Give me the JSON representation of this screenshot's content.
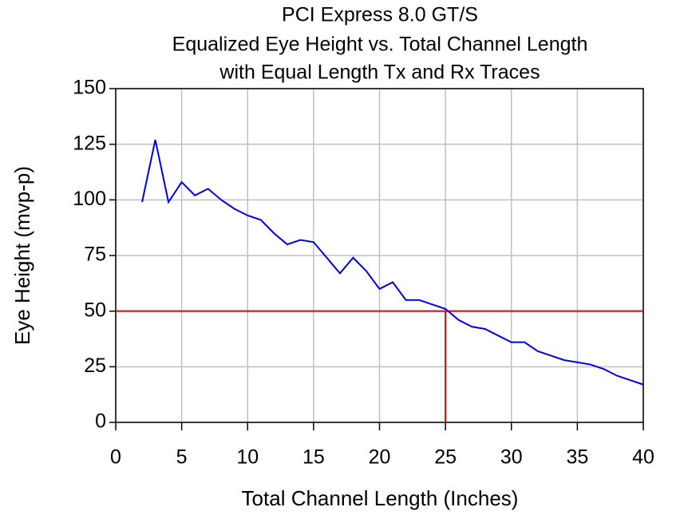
{
  "chart_data": {
    "type": "line",
    "title": [
      "PCI Express 8.0 GT/S",
      "Equalized Eye Height vs. Total Channel Length",
      "with Equal Length Tx and Rx Traces"
    ],
    "x_label": "Total Channel Length (Inches)",
    "y_label": "Eye Height (mvp-p)",
    "x": [
      2,
      3,
      4,
      5,
      6,
      7,
      8,
      9,
      10,
      11,
      12,
      13,
      14,
      15,
      16,
      17,
      18,
      19,
      20,
      21,
      22,
      23,
      24,
      25,
      26,
      27,
      28,
      29,
      30,
      31,
      32,
      33,
      34,
      35,
      36,
      37,
      38,
      39,
      40
    ],
    "series": [
      {
        "color": "#0000e0",
        "values": [
          99,
          127,
          99,
          108,
          102,
          105,
          100,
          96,
          93,
          91,
          85,
          80,
          82,
          81,
          74,
          67,
          74,
          68,
          60,
          63,
          55,
          55,
          53,
          51,
          46,
          43,
          42,
          39,
          36,
          36,
          32,
          30,
          28,
          27,
          26,
          24,
          21,
          19,
          17
        ]
      }
    ],
    "threshold": {
      "x": 25,
      "y": 50,
      "color": "#e00000"
    },
    "xlim": [
      0,
      40
    ],
    "xticks": [
      0,
      5,
      10,
      15,
      20,
      25,
      30,
      35,
      40
    ],
    "ylim": [
      0,
      150
    ],
    "yticks": [
      0,
      25,
      50,
      75,
      100,
      125,
      150
    ],
    "grid": true
  }
}
